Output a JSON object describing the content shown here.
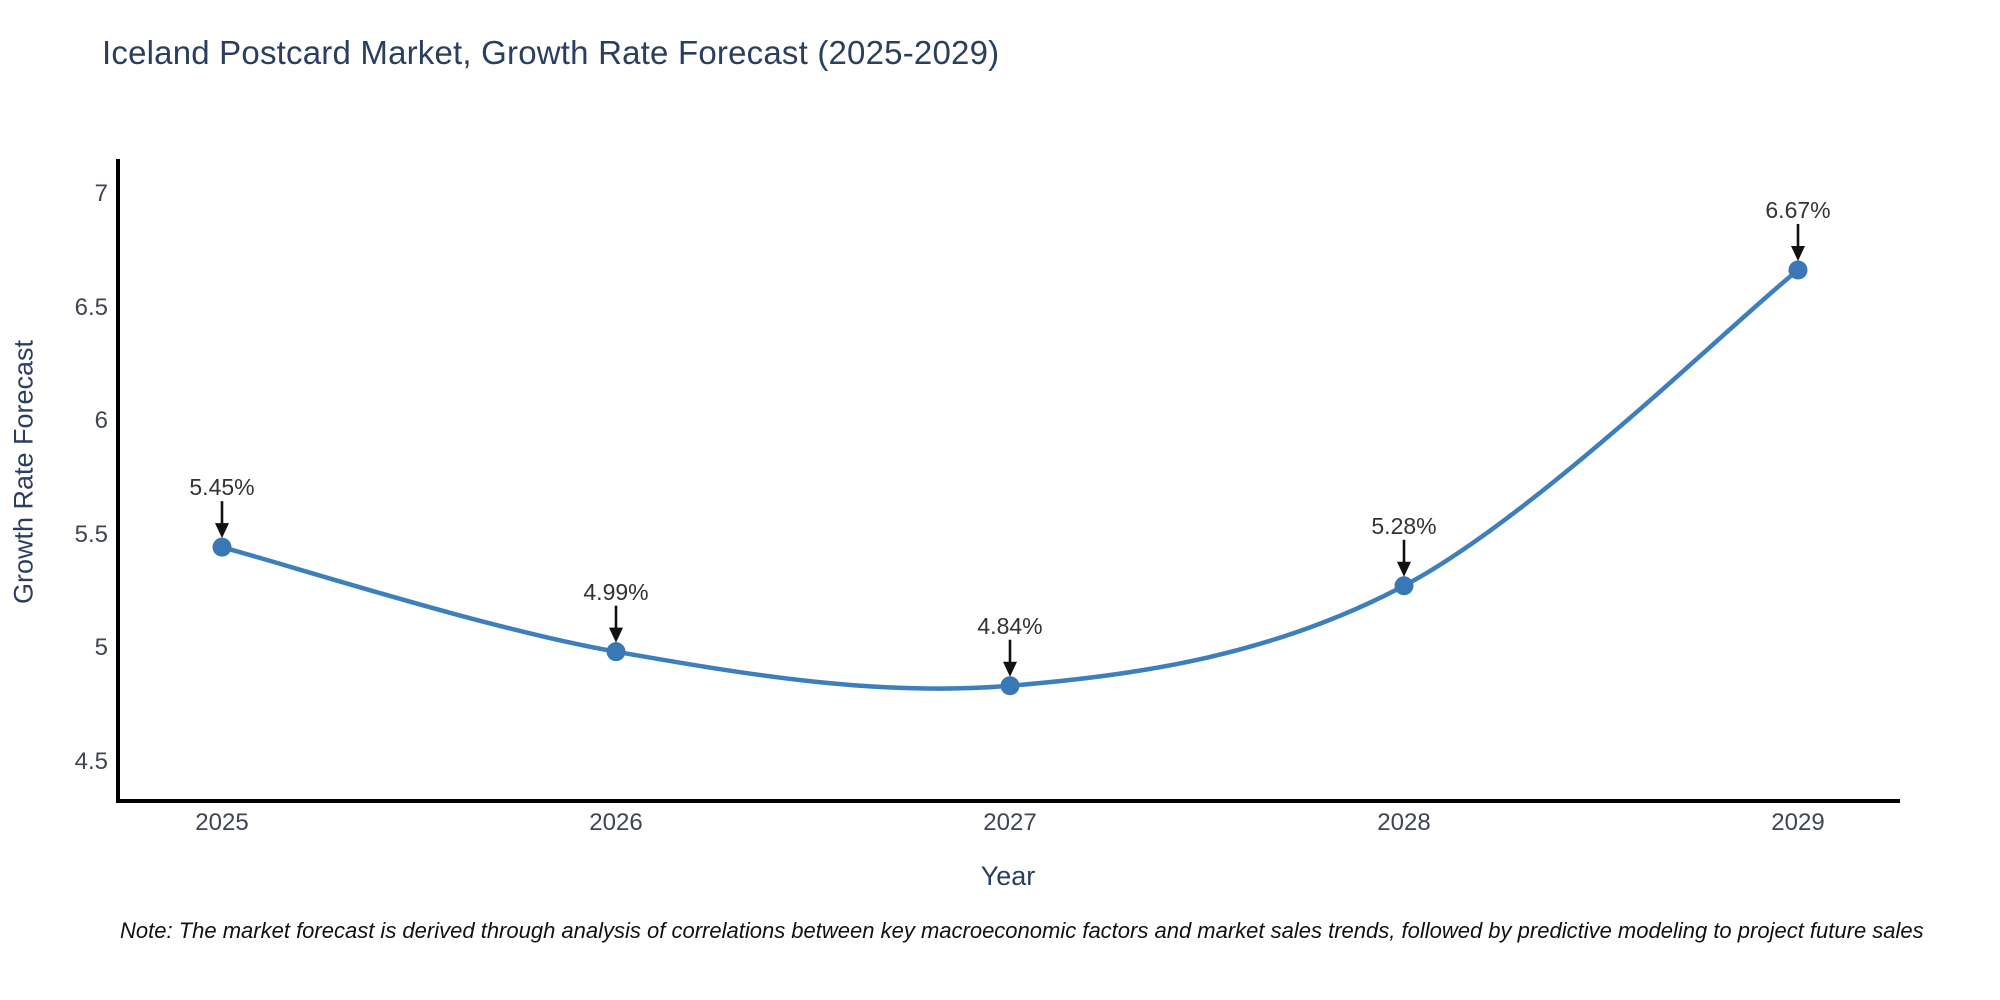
{
  "chart": {
    "title": "Iceland Postcard Market, Growth Rate Forecast (2025-2029)",
    "note": "Note: The market forecast is derived through analysis of correlations between key macroeconomic factors and market sales trends, followed by predictive modeling to project future sales"
  },
  "chart_data": {
    "type": "line",
    "line_shape": "spline",
    "title": "Iceland Postcard Market, Growth Rate Forecast (2025-2029)",
    "xlabel": "Year",
    "ylabel": "Growth Rate Forecast",
    "x": [
      2025,
      2026,
      2027,
      2028,
      2029
    ],
    "series": [
      {
        "name": "Growth Rate Forecast",
        "values": [
          5.45,
          4.99,
          4.84,
          5.28,
          6.67
        ]
      }
    ],
    "point_labels": [
      "5.45%",
      "4.99%",
      "4.84%",
      "5.28%",
      "6.67%"
    ],
    "annotation_style": "text above point with downward black arrow",
    "xtick_labels": [
      "2025",
      "2026",
      "2027",
      "2028",
      "2029"
    ],
    "ytick_values": [
      7,
      6.5,
      6,
      5.5,
      5,
      4.5
    ],
    "ytick_labels": [
      "7",
      "6.5",
      "6",
      "5.5",
      "5",
      "4.5"
    ],
    "ylim": [
      4.33,
      7.16
    ],
    "grid": false,
    "legend": false,
    "colors": {
      "line": "#3d7ebd",
      "marker": "#3a78b5",
      "axis_line": "#000000",
      "title_text": "#2a3f5f",
      "axis_title_text": "#2a3f5f",
      "tick_text": "#3f4552",
      "annotation_text": "#333333",
      "arrow": "#111111",
      "note_text": "#111111"
    }
  }
}
